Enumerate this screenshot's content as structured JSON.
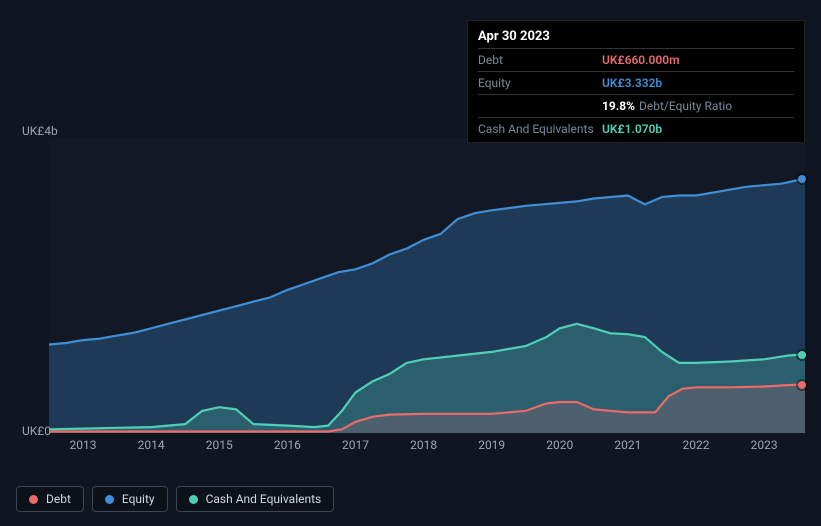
{
  "tooltip": {
    "date": "Apr 30 2023",
    "rows": {
      "debt": {
        "label": "Debt",
        "value": "UK£660.000m",
        "color": "#eb6a6a"
      },
      "equity": {
        "label": "Equity",
        "value": "UK£3.332b",
        "color": "#3f8ed6"
      },
      "ratio": {
        "label": "",
        "pct": "19.8%",
        "text": "Debt/Equity Ratio"
      },
      "cash": {
        "label": "Cash And Equivalents",
        "value": "UK£1.070b",
        "color": "#4fd0b6"
      }
    }
  },
  "chart": {
    "type": "area",
    "background_color": "#0f1621",
    "plot_background": "rgba(255,255,255,0.015)",
    "ymin": 0,
    "ymax": 4,
    "ylabels": {
      "top": "UK£4b",
      "bottom": "UK£0"
    },
    "xmin": 2012.5,
    "xmax": 2023.6,
    "xticks": [
      2013,
      2014,
      2015,
      2016,
      2017,
      2018,
      2019,
      2020,
      2021,
      2022,
      2023
    ],
    "series": {
      "equity": {
        "label": "Equity",
        "color": "#3f8ed6",
        "fill_opacity": 0.28,
        "line_width": 2.2,
        "points": [
          [
            2012.5,
            1.2
          ],
          [
            2012.75,
            1.22
          ],
          [
            2013.0,
            1.26
          ],
          [
            2013.25,
            1.28
          ],
          [
            2013.5,
            1.32
          ],
          [
            2013.75,
            1.36
          ],
          [
            2014.0,
            1.42
          ],
          [
            2014.25,
            1.48
          ],
          [
            2014.5,
            1.54
          ],
          [
            2014.75,
            1.6
          ],
          [
            2015.0,
            1.66
          ],
          [
            2015.25,
            1.72
          ],
          [
            2015.5,
            1.78
          ],
          [
            2015.75,
            1.84
          ],
          [
            2016.0,
            1.94
          ],
          [
            2016.25,
            2.02
          ],
          [
            2016.5,
            2.1
          ],
          [
            2016.75,
            2.18
          ],
          [
            2017.0,
            2.22
          ],
          [
            2017.25,
            2.3
          ],
          [
            2017.5,
            2.42
          ],
          [
            2017.75,
            2.5
          ],
          [
            2018.0,
            2.62
          ],
          [
            2018.25,
            2.7
          ],
          [
            2018.5,
            2.9
          ],
          [
            2018.75,
            2.98
          ],
          [
            2019.0,
            3.02
          ],
          [
            2019.25,
            3.05
          ],
          [
            2019.5,
            3.08
          ],
          [
            2019.75,
            3.1
          ],
          [
            2020.0,
            3.12
          ],
          [
            2020.25,
            3.14
          ],
          [
            2020.5,
            3.18
          ],
          [
            2020.75,
            3.2
          ],
          [
            2021.0,
            3.22
          ],
          [
            2021.25,
            3.1
          ],
          [
            2021.5,
            3.2
          ],
          [
            2021.75,
            3.22
          ],
          [
            2022.0,
            3.22
          ],
          [
            2022.25,
            3.26
          ],
          [
            2022.5,
            3.3
          ],
          [
            2022.75,
            3.34
          ],
          [
            2023.0,
            3.36
          ],
          [
            2023.25,
            3.38
          ],
          [
            2023.35,
            3.4
          ],
          [
            2023.6,
            3.45
          ]
        ]
      },
      "cash": {
        "label": "Cash And Equivalents",
        "color": "#4fd0b6",
        "fill_opacity": 0.25,
        "line_width": 2.2,
        "points": [
          [
            2012.5,
            0.05
          ],
          [
            2013.0,
            0.06
          ],
          [
            2013.5,
            0.07
          ],
          [
            2014.0,
            0.08
          ],
          [
            2014.5,
            0.12
          ],
          [
            2014.75,
            0.3
          ],
          [
            2015.0,
            0.35
          ],
          [
            2015.25,
            0.32
          ],
          [
            2015.5,
            0.12
          ],
          [
            2016.0,
            0.1
          ],
          [
            2016.4,
            0.08
          ],
          [
            2016.6,
            0.1
          ],
          [
            2016.8,
            0.3
          ],
          [
            2017.0,
            0.55
          ],
          [
            2017.25,
            0.7
          ],
          [
            2017.5,
            0.8
          ],
          [
            2017.75,
            0.95
          ],
          [
            2018.0,
            1.0
          ],
          [
            2018.5,
            1.05
          ],
          [
            2019.0,
            1.1
          ],
          [
            2019.5,
            1.18
          ],
          [
            2019.8,
            1.3
          ],
          [
            2020.0,
            1.42
          ],
          [
            2020.25,
            1.48
          ],
          [
            2020.5,
            1.42
          ],
          [
            2020.75,
            1.35
          ],
          [
            2021.0,
            1.34
          ],
          [
            2021.25,
            1.3
          ],
          [
            2021.5,
            1.1
          ],
          [
            2021.75,
            0.95
          ],
          [
            2022.0,
            0.95
          ],
          [
            2022.5,
            0.97
          ],
          [
            2023.0,
            1.0
          ],
          [
            2023.35,
            1.05
          ],
          [
            2023.6,
            1.07
          ]
        ]
      },
      "debt": {
        "label": "Debt",
        "color": "#eb6a6a",
        "fill_opacity": 0.18,
        "line_width": 2.2,
        "points": [
          [
            2012.5,
            0.02
          ],
          [
            2013.0,
            0.02
          ],
          [
            2014.0,
            0.02
          ],
          [
            2015.0,
            0.02
          ],
          [
            2016.0,
            0.02
          ],
          [
            2016.6,
            0.02
          ],
          [
            2016.8,
            0.05
          ],
          [
            2017.0,
            0.15
          ],
          [
            2017.25,
            0.22
          ],
          [
            2017.5,
            0.25
          ],
          [
            2018.0,
            0.26
          ],
          [
            2018.5,
            0.26
          ],
          [
            2019.0,
            0.26
          ],
          [
            2019.5,
            0.3
          ],
          [
            2019.8,
            0.4
          ],
          [
            2020.0,
            0.42
          ],
          [
            2020.25,
            0.42
          ],
          [
            2020.5,
            0.32
          ],
          [
            2021.0,
            0.28
          ],
          [
            2021.4,
            0.28
          ],
          [
            2021.6,
            0.5
          ],
          [
            2021.8,
            0.6
          ],
          [
            2022.0,
            0.62
          ],
          [
            2022.5,
            0.62
          ],
          [
            2023.0,
            0.63
          ],
          [
            2023.35,
            0.65
          ],
          [
            2023.6,
            0.66
          ]
        ]
      }
    },
    "end_markers": [
      {
        "series": "equity",
        "x": 2023.55,
        "y": 3.44,
        "color": "#3f8ed6"
      },
      {
        "series": "cash",
        "x": 2023.55,
        "y": 1.06,
        "color": "#4fd0b6"
      },
      {
        "series": "debt",
        "x": 2023.55,
        "y": 0.65,
        "color": "#eb6a6a"
      }
    ]
  },
  "legend": [
    {
      "key": "debt",
      "label": "Debt",
      "color": "#eb6a6a"
    },
    {
      "key": "equity",
      "label": "Equity",
      "color": "#3f8ed6"
    },
    {
      "key": "cash",
      "label": "Cash And Equivalents",
      "color": "#4fd0b6"
    }
  ]
}
